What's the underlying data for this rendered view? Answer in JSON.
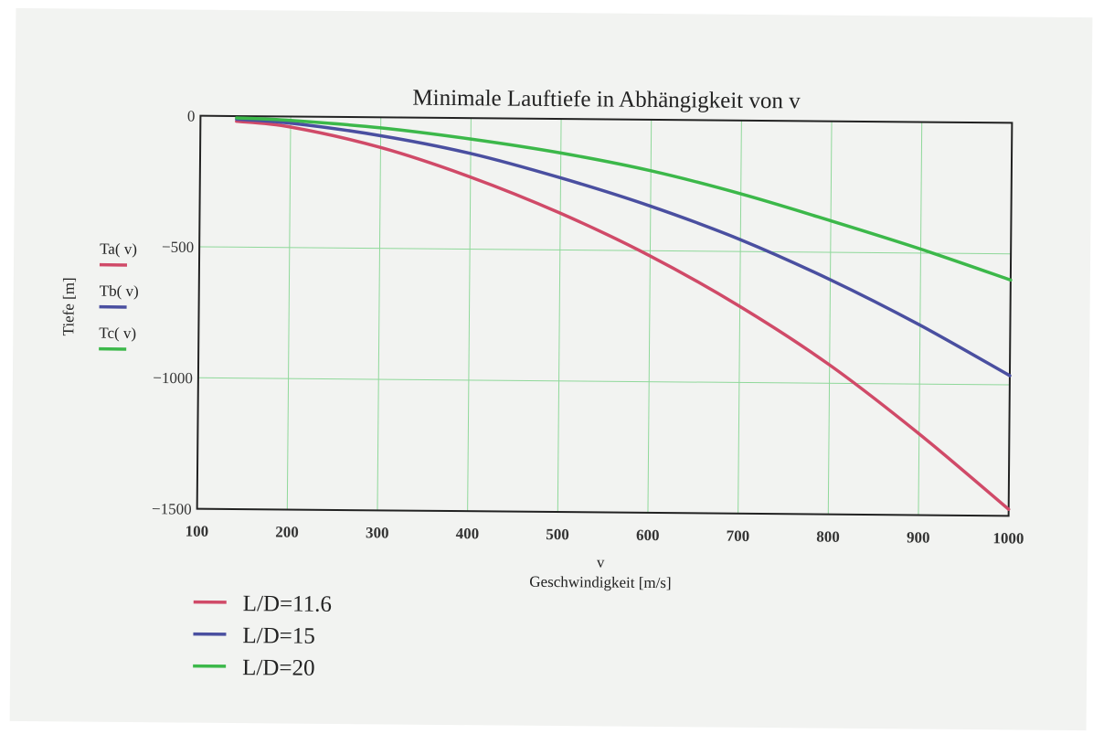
{
  "chart_data": {
    "type": "line",
    "title": "Minimale Lauftiefe in Abhängigkeit von v",
    "xlabel_var": "v",
    "xlabel": "Geschwindigkeit [m/s]",
    "ylabel": "Tiefe [m]",
    "xlim": [
      100,
      1000
    ],
    "ylim": [
      -1500,
      0
    ],
    "x_ticks": [
      "100",
      "200",
      "300",
      "400",
      "500",
      "600",
      "700",
      "800",
      "900",
      "1000"
    ],
    "y_ticks": [
      "0",
      "−500",
      "−1000",
      "−1500"
    ],
    "grid": true,
    "x": [
      140,
      200,
      300,
      400,
      500,
      600,
      700,
      800,
      900,
      1000
    ],
    "series": [
      {
        "name": "L/D=11.6",
        "fn_label": "Ta( v)",
        "color": "#d04a68",
        "values": [
          -20,
          -40,
          -115,
          -225,
          -360,
          -520,
          -710,
          -930,
          -1190,
          -1475
        ]
      },
      {
        "name": "L/D=15",
        "fn_label": "Tb( v)",
        "color": "#4a4fa0",
        "values": [
          -12,
          -25,
          -70,
          -135,
          -225,
          -330,
          -455,
          -605,
          -775,
          -965
        ]
      },
      {
        "name": "L/D=20",
        "fn_label": "Tc( v)",
        "color": "#3cb84a",
        "values": [
          -7,
          -15,
          -40,
          -80,
          -130,
          -195,
          -280,
          -380,
          -485,
          -600
        ]
      }
    ]
  }
}
